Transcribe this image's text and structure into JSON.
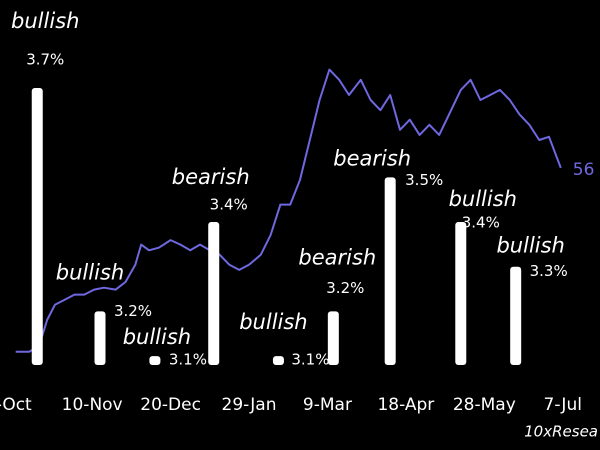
{
  "chart_data": {
    "type": "bar-line",
    "x_unit": "days",
    "xlim": [
      -7,
      299
    ],
    "xticks": [
      {
        "value": 0,
        "label": "-Oct"
      },
      {
        "value": 40,
        "label": "10-Nov"
      },
      {
        "value": 80,
        "label": "20-Dec"
      },
      {
        "value": 120,
        "label": "29-Jan"
      },
      {
        "value": 160,
        "label": "9-Mar"
      },
      {
        "value": 200,
        "label": "18-Apr"
      },
      {
        "value": 240,
        "label": "28-May"
      },
      {
        "value": 280,
        "label": "7-Jul"
      }
    ],
    "ylim": [
      3.08,
      3.7
    ],
    "y2lim": [
      24.9,
      68.6
    ],
    "bars": {
      "color": "#ffffff",
      "x": [
        12,
        44,
        72,
        102,
        135,
        163,
        192,
        228,
        256
      ],
      "values": [
        3.7,
        3.2,
        3.1,
        3.4,
        3.1,
        3.2,
        3.5,
        3.4,
        3.3
      ],
      "value_labels": [
        "3.7%",
        "3.2%",
        "3.1%",
        "3.4%",
        "3.1%",
        "3.2%",
        "3.5%",
        "3.4%",
        "3.3%"
      ],
      "annotations": [
        "bullish",
        "bullish",
        "bullish",
        "bearish",
        "bullish",
        "bearish",
        "bearish",
        "bullish",
        "bullish"
      ]
    },
    "line": {
      "color": "#6f68e0",
      "axis": "y2",
      "end_label": "56",
      "x": [
        1,
        8,
        13,
        17,
        21,
        26,
        31,
        36,
        41,
        46,
        52,
        57,
        62,
        65,
        69,
        74,
        80,
        85,
        90,
        95,
        100,
        105,
        110,
        115,
        120,
        126,
        131,
        136,
        141,
        146,
        151,
        156,
        161,
        166,
        171,
        177,
        182,
        187,
        192,
        197,
        202,
        207,
        212,
        217,
        222,
        228,
        233,
        238,
        243,
        248,
        253,
        258,
        263,
        268,
        273,
        279
      ],
      "values": [
        27,
        27,
        28,
        32,
        34.4,
        35.2,
        36,
        36,
        36.8,
        37.1,
        36.8,
        38,
        40.7,
        43.9,
        43,
        43.4,
        44.6,
        43.9,
        43,
        43.9,
        43,
        42.3,
        40.7,
        39.9,
        40.7,
        42.3,
        45.4,
        50.2,
        50.2,
        54.1,
        60.4,
        66.7,
        71.5,
        69.9,
        67.5,
        69.9,
        66.7,
        65.1,
        67.5,
        62,
        63.6,
        61.2,
        62.8,
        61.2,
        64.4,
        68.3,
        69.9,
        66.7,
        67.5,
        68.3,
        66.7,
        64.4,
        62.8,
        60.4,
        60.9,
        56
      ]
    },
    "source": "10xResea"
  }
}
